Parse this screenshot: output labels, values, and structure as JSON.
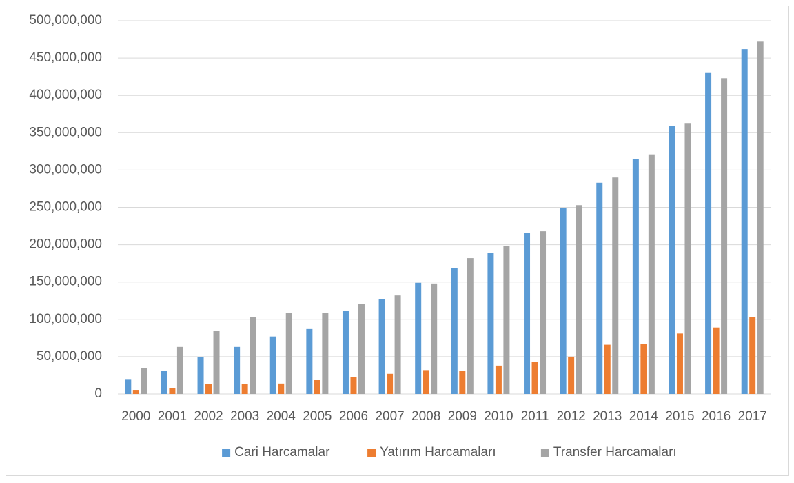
{
  "chart_data": {
    "type": "bar",
    "categories": [
      "2000",
      "2001",
      "2002",
      "2003",
      "2004",
      "2005",
      "2006",
      "2007",
      "2008",
      "2009",
      "2010",
      "2011",
      "2012",
      "2013",
      "2014",
      "2015",
      "2016",
      "2017"
    ],
    "series": [
      {
        "name": "Cari Harcamalar",
        "color": "#5b9bd5",
        "values": [
          20000000,
          31000000,
          49000000,
          63000000,
          77000000,
          87000000,
          111000000,
          127000000,
          149000000,
          169000000,
          189000000,
          216000000,
          249000000,
          283000000,
          315000000,
          359000000,
          430000000,
          462000000
        ]
      },
      {
        "name": "Yatırım Harcamaları",
        "color": "#ed7d31",
        "values": [
          5500000,
          8000000,
          13000000,
          13000000,
          14000000,
          19000000,
          23000000,
          27000000,
          32000000,
          31000000,
          38000000,
          43000000,
          50000000,
          66000000,
          67000000,
          81000000,
          89000000,
          103000000
        ]
      },
      {
        "name": "Transfer Harcamaları",
        "color": "#a5a5a5",
        "values": [
          35000000,
          63000000,
          85000000,
          103000000,
          109000000,
          109000000,
          121000000,
          132000000,
          148000000,
          182000000,
          198000000,
          218000000,
          253000000,
          290000000,
          321000000,
          363000000,
          423000000,
          472000000
        ]
      }
    ],
    "ylim": [
      0,
      500000000
    ],
    "yticks": [
      0,
      {
        "value": 50000000,
        "label": "50,000,000"
      },
      {
        "value": 100000000,
        "label": "100,000,000"
      },
      {
        "value": 150000000,
        "label": "150,000,000"
      },
      {
        "value": 200000000,
        "label": "200,000,000"
      },
      {
        "value": 250000000,
        "label": "250,000,000"
      },
      {
        "value": 300000000,
        "label": "300,000,000"
      },
      {
        "value": 350000000,
        "label": "350,000,000"
      },
      {
        "value": 400000000,
        "label": "400,000,000"
      },
      {
        "value": 450000000,
        "label": "450,000,000"
      },
      {
        "value": 500000000,
        "label": "500,000,000"
      }
    ],
    "grid": true,
    "legend": "bottom"
  }
}
